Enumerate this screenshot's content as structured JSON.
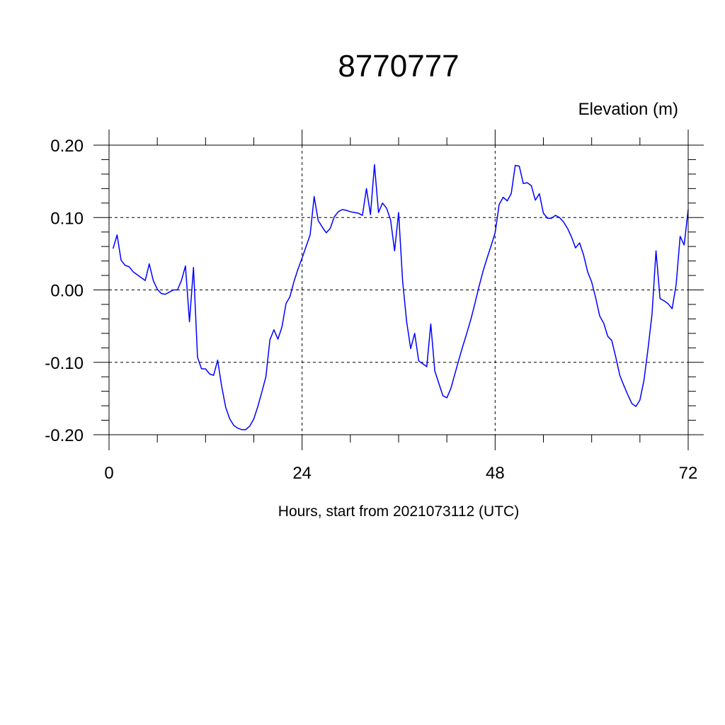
{
  "chart_data": {
    "type": "line",
    "title": "8770777",
    "ylabel": "Elevation (m)",
    "xlabel": "Hours, start from 2021073112 (UTC)",
    "xlim": [
      0,
      72
    ],
    "ylim": [
      -0.2,
      0.2
    ],
    "x_ticks": [
      0,
      24,
      48,
      72
    ],
    "x_tick_labels": [
      "0",
      "24",
      "48",
      "72"
    ],
    "y_ticks": [
      -0.2,
      -0.1,
      0.0,
      0.1,
      0.2
    ],
    "y_tick_labels": [
      "-0.20",
      "-0.10",
      "0.00",
      "0.10",
      "0.20"
    ],
    "grid": "dashed",
    "series": [
      {
        "color": "#0000ff",
        "x": [
          0.5,
          1.0,
          1.5,
          2.0,
          2.5,
          3.0,
          3.5,
          4.0,
          4.5,
          5.0,
          5.5,
          6.0,
          6.5,
          7.0,
          7.5,
          8.0,
          8.5,
          9.0,
          9.5,
          10.0,
          10.5,
          11.0,
          11.5,
          12.0,
          12.5,
          13.0,
          13.5,
          14.0,
          14.5,
          15.0,
          15.5,
          16.0,
          16.5,
          17.0,
          17.5,
          18.0,
          18.5,
          19.0,
          19.5,
          20.0,
          20.5,
          21.0,
          21.5,
          22.0,
          22.5,
          23.0,
          23.5,
          24.0,
          24.5,
          25.0,
          25.5,
          26.0,
          26.5,
          27.0,
          27.5,
          28.0,
          28.5,
          29.0,
          29.5,
          30.0,
          30.5,
          31.0,
          31.5,
          32.0,
          32.5,
          33.0,
          33.5,
          34.0,
          34.5,
          35.0,
          35.5,
          36.0,
          36.5,
          37.0,
          37.5,
          38.0,
          38.5,
          39.0,
          39.5,
          40.0,
          40.5,
          41.0,
          41.5,
          42.0,
          42.5,
          43.0,
          43.5,
          44.0,
          44.5,
          45.0,
          45.5,
          46.0,
          46.5,
          47.0,
          47.5,
          48.0,
          48.5,
          49.0,
          49.5,
          50.0,
          50.5,
          51.0,
          51.5,
          52.0,
          52.5,
          53.0,
          53.5,
          54.0,
          54.5,
          55.0,
          55.5,
          56.0,
          56.5,
          57.0,
          57.5,
          58.0,
          58.5,
          59.0,
          59.5,
          60.0,
          60.5,
          61.0,
          61.5,
          62.0,
          62.5,
          63.0,
          63.5,
          64.0,
          64.5,
          65.0,
          65.5,
          66.0,
          66.5,
          67.0,
          67.5,
          68.0,
          68.5,
          69.0,
          69.5,
          70.0,
          70.5,
          71.0,
          71.5,
          72.0
        ],
        "y": [
          0.057,
          0.076,
          0.041,
          0.034,
          0.032,
          0.025,
          0.021,
          0.017,
          0.013,
          0.036,
          0.013,
          0.001,
          -0.005,
          -0.006,
          -0.003,
          0.0,
          0.0,
          0.013,
          0.033,
          -0.044,
          0.031,
          -0.093,
          -0.109,
          -0.109,
          -0.116,
          -0.118,
          -0.097,
          -0.133,
          -0.162,
          -0.178,
          -0.187,
          -0.191,
          -0.193,
          -0.193,
          -0.188,
          -0.178,
          -0.161,
          -0.141,
          -0.12,
          -0.069,
          -0.055,
          -0.068,
          -0.051,
          -0.019,
          -0.009,
          0.012,
          0.029,
          0.044,
          0.06,
          0.076,
          0.129,
          0.096,
          0.087,
          0.079,
          0.085,
          0.101,
          0.108,
          0.111,
          0.11,
          0.108,
          0.107,
          0.106,
          0.103,
          0.14,
          0.104,
          0.173,
          0.107,
          0.12,
          0.113,
          0.097,
          0.054,
          0.107,
          0.012,
          -0.044,
          -0.081,
          -0.06,
          -0.098,
          -0.102,
          -0.106,
          -0.047,
          -0.112,
          -0.129,
          -0.146,
          -0.149,
          -0.136,
          -0.116,
          -0.096,
          -0.077,
          -0.059,
          -0.04,
          -0.018,
          0.005,
          0.026,
          0.044,
          0.061,
          0.079,
          0.118,
          0.128,
          0.123,
          0.133,
          0.172,
          0.171,
          0.147,
          0.148,
          0.144,
          0.124,
          0.133,
          0.106,
          0.099,
          0.099,
          0.103,
          0.1,
          0.094,
          0.085,
          0.073,
          0.058,
          0.065,
          0.048,
          0.025,
          0.011,
          -0.011,
          -0.036,
          -0.046,
          -0.064,
          -0.07,
          -0.093,
          -0.118,
          -0.132,
          -0.145,
          -0.157,
          -0.161,
          -0.152,
          -0.125,
          -0.082,
          -0.034,
          0.054,
          -0.012,
          -0.015,
          -0.019,
          -0.026,
          0.007,
          0.074,
          0.062,
          0.111
        ]
      }
    ]
  }
}
